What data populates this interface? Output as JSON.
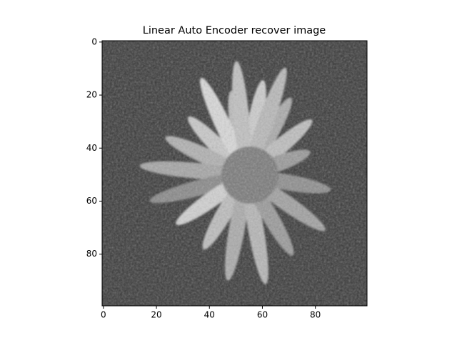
{
  "chart_data": {
    "type": "image",
    "title": "Linear Auto Encoder recover image",
    "colormap": "gray",
    "xlim": [
      -0.5,
      99.5
    ],
    "ylim": [
      99.5,
      -0.5
    ],
    "xticks": [
      0,
      20,
      40,
      60,
      80
    ],
    "yticks": [
      0,
      20,
      40,
      60,
      80
    ]
  }
}
